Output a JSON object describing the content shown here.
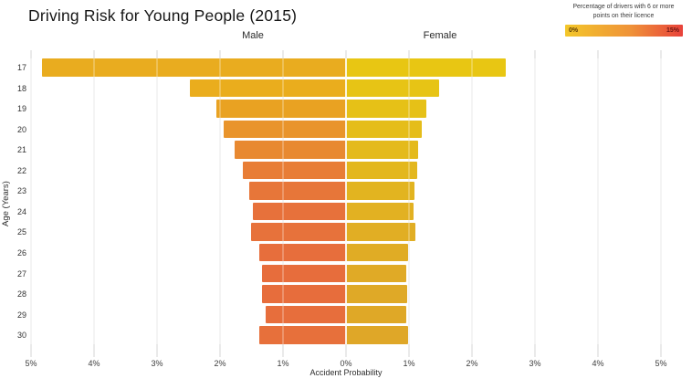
{
  "legend": {
    "title_line1": "Percentage of drivers with 6 or more",
    "title_line2": "points on their licence",
    "min_label": "0%",
    "max_label": "15%",
    "gradient": [
      "#f3c72a",
      "#ef9338",
      "#e8423b"
    ]
  },
  "chart_data": {
    "type": "bar",
    "variant": "diverging_horizontal_pyramid",
    "title": "Driving Risk for Young People (2015)",
    "xlabel": "Accident Probability",
    "ylabel": "Age (Years)",
    "grid": true,
    "x_axis": {
      "unit": "%",
      "max_each_side": 5,
      "tick_step": 1,
      "tick_labels": [
        "5%",
        "4%",
        "3%",
        "2%",
        "1%",
        "0%",
        "1%",
        "2%",
        "3%",
        "4%",
        "5%"
      ]
    },
    "categories": [
      17,
      18,
      19,
      20,
      21,
      22,
      23,
      24,
      25,
      26,
      27,
      28,
      29,
      30
    ],
    "series": [
      {
        "name": "Male",
        "side": "left",
        "values": [
          4.83,
          2.48,
          2.06,
          1.94,
          1.77,
          1.64,
          1.53,
          1.48,
          1.51,
          1.38,
          1.33,
          1.34,
          1.27,
          1.38
        ],
        "colors": [
          "#e9ac1f",
          "#eaad1d",
          "#e9a222",
          "#e9942b",
          "#e88931",
          "#e87d36",
          "#e77639",
          "#e7713b",
          "#e7723b",
          "#e76e3c",
          "#e76d3c",
          "#e76d3c",
          "#e76e3c",
          "#e7703b"
        ]
      },
      {
        "name": "Female",
        "side": "right",
        "values": [
          2.54,
          1.48,
          1.28,
          1.2,
          1.14,
          1.13,
          1.08,
          1.07,
          1.1,
          0.98,
          0.96,
          0.97,
          0.95,
          0.98
        ],
        "colors": [
          "#e8c613",
          "#e7c415",
          "#e6c117",
          "#e5bd1a",
          "#e4ba1c",
          "#e3b71e",
          "#e2b420",
          "#e2b122",
          "#e1ae24",
          "#e0ac25",
          "#e0aa26",
          "#dfa927",
          "#dfa827",
          "#dfa728"
        ]
      }
    ],
    "color_encoding": "bar color = percentage of drivers with 6 or more points on their licence (0% yellow to 15% red)"
  }
}
